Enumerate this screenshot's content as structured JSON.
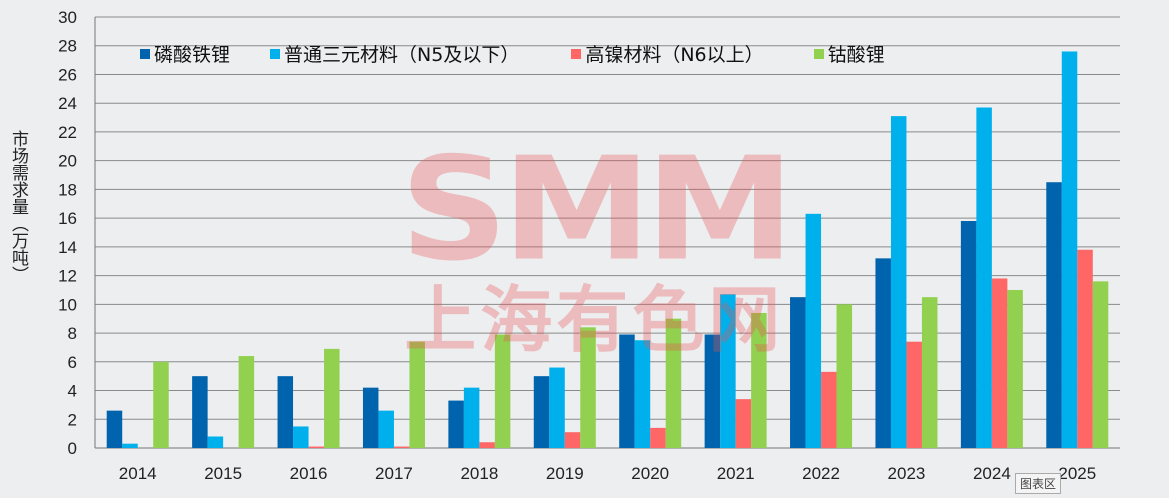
{
  "chart_data": {
    "type": "bar",
    "title": "",
    "xlabel": "",
    "ylabel": "市场需求量（万吨）",
    "ylim": [
      0,
      30
    ],
    "ytick_step": 2,
    "grid": true,
    "legend_position": "top",
    "categories": [
      "2014",
      "2015",
      "2016",
      "2017",
      "2018",
      "2019",
      "2020",
      "2021",
      "2022",
      "2023",
      "2024",
      "2025"
    ],
    "series": [
      {
        "name": "磷酸铁锂",
        "color": "#0063ad",
        "values": [
          2.6,
          5.0,
          5.0,
          4.2,
          3.3,
          5.0,
          7.9,
          7.9,
          10.5,
          13.2,
          15.8,
          18.5
        ]
      },
      {
        "name": "普通三元材料（N5及以下）",
        "color": "#00b0ec",
        "values": [
          0.3,
          0.8,
          1.5,
          2.6,
          4.2,
          5.6,
          7.5,
          10.7,
          16.3,
          23.1,
          23.7,
          27.6
        ]
      },
      {
        "name": "高镍材料（N6以上）",
        "color": "#ff6666",
        "values": [
          0,
          0,
          0.1,
          0.1,
          0.4,
          1.1,
          1.4,
          3.4,
          5.3,
          7.4,
          11.8,
          13.8
        ]
      },
      {
        "name": "钴酸锂",
        "color": "#92d050",
        "values": [
          6.0,
          6.4,
          6.9,
          7.4,
          7.9,
          8.4,
          9.0,
          9.4,
          10.0,
          10.5,
          11.0,
          11.6
        ]
      }
    ]
  },
  "watermark": {
    "logo": "SMM",
    "name": "上海有色网"
  },
  "tooltip": "图表区"
}
